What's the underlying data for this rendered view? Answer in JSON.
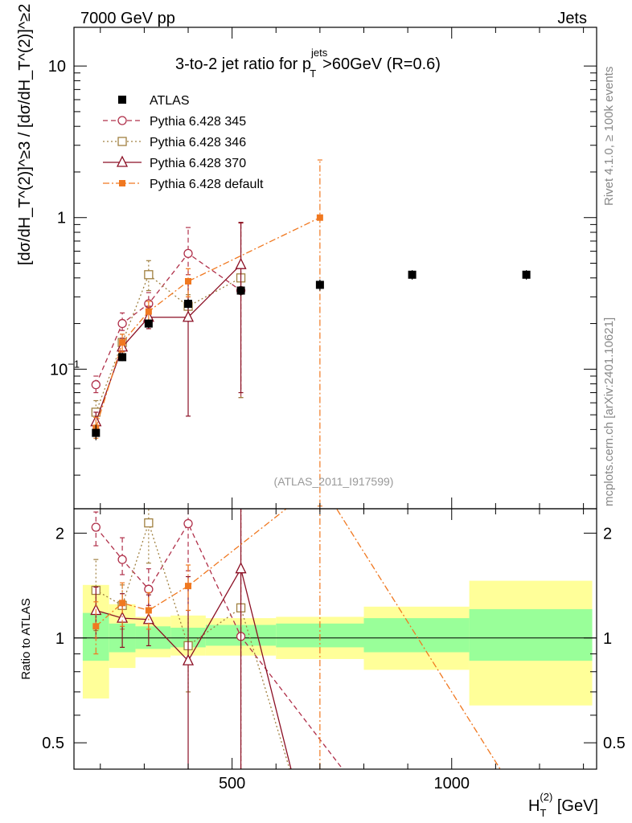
{
  "header": {
    "left": "7000 GeV pp",
    "right": "Jets"
  },
  "side_labels": {
    "rivet": "Rivet 4.1.0, ≥ 100k events",
    "mcplots": "mcplots.cern.ch [arXiv:2401.10621]"
  },
  "chart_data": {
    "type": "scatter",
    "title": "3-to-2 jet ratio for p_T^jets >60GeV (R=0.6)",
    "title_main": "3-to-2 jet ratio for p",
    "title_sup": "jets",
    "title_sub": "T",
    "title_tail": ">60GeV (R=0.6)",
    "analysis_tag": "(ATLAS_2011_I917599)",
    "xlabel": "H_T^(2) [GeV]",
    "xlabel_main": "H",
    "xlabel_sub": "T",
    "xlabel_sup": "(2)",
    "xlabel_tail": " [GeV]",
    "ylabel": "[dσ/dH_T^(2)]^≥3 / [dσ/dH_T^(2)]^≥2",
    "ratio_ylabel": "Ratio to ATLAS",
    "xlim": [
      140,
      1330
    ],
    "ylim": [
      0.012,
      18
    ],
    "ratio_ylim": [
      0.42,
      2.35
    ],
    "x_ticks": [
      {
        "value": 500,
        "label": "500"
      },
      {
        "value": 1000,
        "label": "1000"
      }
    ],
    "y_ticks": [
      {
        "value": 0.1,
        "base": "10",
        "exp": "−1"
      },
      {
        "value": 1,
        "base": "1",
        "exp": ""
      },
      {
        "value": 10,
        "base": "10",
        "exp": ""
      }
    ],
    "ratio_ticks": [
      {
        "value": 0.5,
        "label": "0.5"
      },
      {
        "value": 1,
        "label": "1"
      },
      {
        "value": 2,
        "label": "2"
      }
    ],
    "bins": [
      [
        160,
        220
      ],
      [
        220,
        280
      ],
      [
        280,
        360
      ],
      [
        360,
        440
      ],
      [
        440,
        600
      ],
      [
        600,
        800
      ],
      [
        800,
        1040
      ],
      [
        1040,
        1320
      ]
    ],
    "data": {
      "name": "ATLAS",
      "x": [
        190,
        250,
        310,
        400,
        520,
        700,
        910,
        1170
      ],
      "y": [
        0.038,
        0.12,
        0.2,
        0.27,
        0.33,
        0.36,
        0.42,
        0.42
      ],
      "err_lo": [
        0.034,
        0.113,
        0.187,
        0.25,
        0.305,
        0.33,
        0.39,
        0.39
      ],
      "err_hi": [
        0.043,
        0.128,
        0.213,
        0.29,
        0.355,
        0.39,
        0.45,
        0.45
      ]
    },
    "bands": {
      "inner_lo": [
        0.86,
        0.91,
        0.93,
        0.94,
        0.95,
        0.94,
        0.91,
        0.86
      ],
      "inner_hi": [
        1.18,
        1.1,
        1.08,
        1.07,
        1.09,
        1.1,
        1.14,
        1.21
      ],
      "outer_lo": [
        0.67,
        0.82,
        0.88,
        0.89,
        0.89,
        0.87,
        0.81,
        0.64
      ],
      "outer_hi": [
        1.42,
        1.25,
        1.15,
        1.16,
        1.14,
        1.15,
        1.23,
        1.46
      ]
    },
    "series": [
      {
        "name": "Pythia 6.428 345",
        "color": "#b0304a",
        "dash": "6,4",
        "marker": "circle-open",
        "x": [
          190,
          250,
          310,
          400,
          520
        ],
        "y": [
          0.079,
          0.2,
          0.27,
          0.58,
          0.33
        ],
        "err_lo": [
          0.07,
          0.18,
          0.25,
          0.42,
          0.065
        ],
        "err_hi": [
          0.09,
          0.235,
          0.32,
          0.86,
          0.92
        ],
        "ratio": [
          2.08,
          1.68,
          1.38,
          2.13,
          1.01
        ],
        "ratio_err_lo": [
          1.84,
          1.52,
          1.24,
          1.56,
          0.2
        ],
        "ratio_err_hi": [
          2.3,
          1.94,
          1.58,
          3.2,
          2.8
        ],
        "ratio_tail": [
          [
            525,
            1.01
          ],
          [
            800,
            0.35
          ]
        ]
      },
      {
        "name": "Pythia 6.428 346",
        "color": "#a08040",
        "dash": "2,3",
        "marker": "square-open",
        "x": [
          190,
          250,
          310,
          400,
          520
        ],
        "y": [
          0.052,
          0.15,
          0.42,
          0.26,
          0.4
        ],
        "err_lo": [
          0.042,
          0.13,
          0.33,
          0.21,
          0.065
        ],
        "err_hi": [
          0.062,
          0.17,
          0.52,
          0.31,
          0.93
        ],
        "ratio": [
          1.37,
          1.24,
          2.14,
          0.95,
          1.22
        ],
        "ratio_err_lo": [
          1.05,
          1.06,
          1.64,
          0.7,
          0.2
        ],
        "ratio_err_hi": [
          1.68,
          1.42,
          2.6,
          1.2,
          2.8
        ],
        "ratio_tail": [
          [
            525,
            1.22
          ],
          [
            650,
            0.35
          ]
        ]
      },
      {
        "name": "Pythia 6.428 370",
        "color": "#8b0f24",
        "dash": "",
        "marker": "triangle-open",
        "x": [
          190,
          250,
          310,
          400,
          520
        ],
        "y": [
          0.045,
          0.14,
          0.22,
          0.22,
          0.49
        ],
        "err_lo": [
          0.038,
          0.12,
          0.185,
          0.049,
          0.07
        ],
        "err_hi": [
          0.052,
          0.16,
          0.26,
          0.39,
          0.93
        ],
        "ratio": [
          1.2,
          1.14,
          1.13,
          0.86,
          1.58
        ],
        "ratio_err_lo": [
          1.0,
          0.94,
          0.95,
          0.2,
          0.2
        ],
        "ratio_err_hi": [
          1.4,
          1.34,
          1.33,
          1.5,
          2.8
        ],
        "ratio_tail": [
          [
            525,
            1.58
          ],
          [
            650,
            0.35
          ]
        ]
      },
      {
        "name": "Pythia 6.428 default",
        "color": "#f07820",
        "dash": "8,3,2,3",
        "marker": "square-filled",
        "x": [
          190,
          250,
          310,
          400,
          700
        ],
        "y": [
          0.041,
          0.15,
          0.24,
          0.38,
          1.0
        ],
        "err_lo": [
          0.035,
          0.13,
          0.21,
          0.3,
          0.0125
        ],
        "err_hi": [
          0.048,
          0.17,
          0.28,
          0.46,
          2.4
        ],
        "ratio": [
          1.08,
          1.26,
          1.2,
          1.41,
          2.8
        ],
        "ratio_err_lo": [
          0.9,
          1.08,
          1.06,
          1.2,
          0.2
        ],
        "ratio_err_hi": [
          1.27,
          1.44,
          1.35,
          1.62,
          6.0
        ],
        "ratio_tail": [
          [
            700,
            2.8
          ],
          [
            1150,
            0.35
          ]
        ]
      }
    ]
  }
}
